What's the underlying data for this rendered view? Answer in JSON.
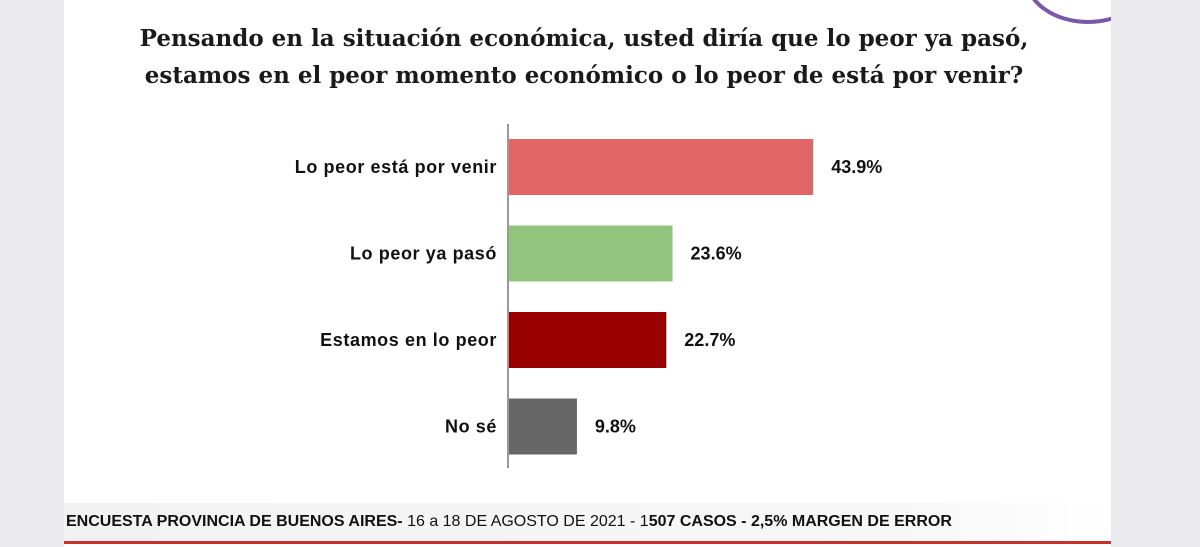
{
  "title": "Pensando en la situación económica, usted diría que lo peor ya pasó, estamos en el peor momento económico o lo peor de está por venir?",
  "chart_data": {
    "type": "bar",
    "orientation": "horizontal",
    "title": "Pensando en la situación económica, usted diría que lo peor ya pasó, estamos en el peor momento económico o lo peor de está por venir?",
    "categories": [
      "Lo peor está por venir",
      "Lo peor ya pasó",
      "Estamos en lo peor",
      "No sé"
    ],
    "values": [
      43.9,
      23.6,
      22.7,
      9.8
    ],
    "value_labels": [
      "43.9%",
      "23.6%",
      "22.7%",
      "9.8%"
    ],
    "colors": [
      "#e06666",
      "#93c47d",
      "#990000",
      "#666666"
    ],
    "xlim": [
      0,
      50
    ],
    "grid": false,
    "legend": "none",
    "xlabel": "",
    "ylabel": ""
  },
  "footer": {
    "part1": "ENCUESTA PROVINCIA DE BUENOS AIRES-",
    "part2": " 16 a 18 DE AGOSTO DE 2021 - 1",
    "part3": "507 CASOS - 2,5% MARGEN DE ERROR"
  },
  "colors": {
    "accent_line": "#c9302c",
    "logo_ring": "#7a57a8"
  }
}
